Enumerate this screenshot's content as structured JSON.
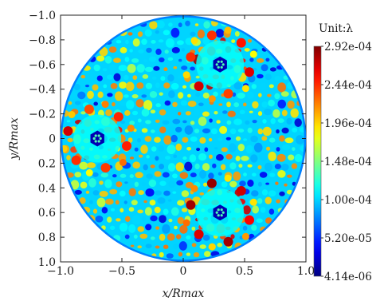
{
  "chart_data": {
    "type": "heatmap",
    "title": "",
    "xlabel": "x/Rmax",
    "ylabel": "y/Rmax",
    "xlim": [
      -1.0,
      1.0
    ],
    "ylim": [
      -1.0,
      1.0
    ],
    "y_direction": "downward",
    "x_tick_labels": [
      "−1.0",
      "−0.5",
      "0",
      "0.5",
      "1.0"
    ],
    "x_tick_values": [
      -1.0,
      -0.5,
      0,
      0.5,
      1.0
    ],
    "y_tick_labels": [
      "−1.0",
      "−0.8",
      "−0.6",
      "−0.4",
      "−0.2",
      "0",
      "0.2",
      "0.4",
      "0.6",
      "0.8",
      "1.0"
    ],
    "y_tick_values": [
      -1.0,
      -0.8,
      -0.6,
      -0.4,
      -0.2,
      0,
      0.2,
      0.4,
      0.6,
      0.8,
      1.0
    ],
    "colorbar": {
      "unit_label": "Unit:λ",
      "min": 4.14e-06,
      "max": 0.000292,
      "tick_labels": [
        "2.92e-04",
        "2.44e-04",
        "1.96e-04",
        "1.48e-04",
        "1.00e-04",
        "5.20e-05",
        "4.14e-06"
      ],
      "tick_values": [
        0.000292,
        0.000244,
        0.000196,
        0.000148,
        0.0001,
        5.2e-05,
        4.14e-06
      ],
      "colormap": "jet"
    },
    "domain": "unit-disk",
    "background_value": 0.0001,
    "hexagonal_centers": [
      {
        "x": 0.3,
        "y": -0.6
      },
      {
        "x": -0.7,
        "y": 0.0
      },
      {
        "x": 0.3,
        "y": 0.6
      }
    ]
  }
}
